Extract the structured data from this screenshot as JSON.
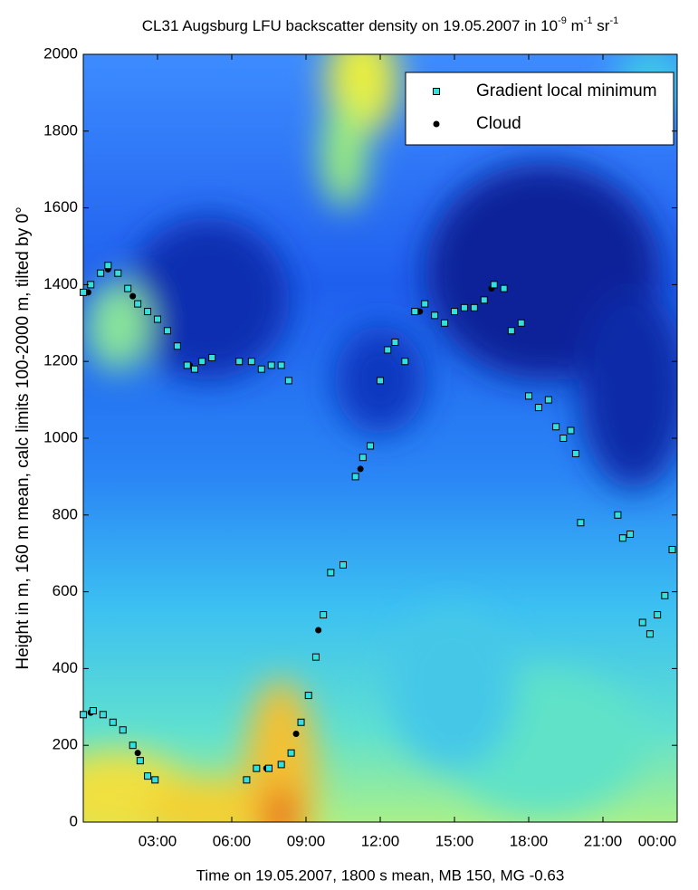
{
  "chart_data": {
    "type": "scatter",
    "title": [
      "CL31 Augsburg LFU backscatter density on 19.05.2007 in 10",
      "-9",
      " m",
      "-1",
      " sr",
      "-1"
    ],
    "x_label": "Time on 19.05.2007, 1800 s mean, MB 150, MG -0.63",
    "y_label": "Height in m, 160 m mean, calc limits 100-2000 m, tilted by 0°",
    "xlim": [
      0,
      24
    ],
    "ylim": [
      0,
      2000
    ],
    "xticks": [
      {
        "value": 3,
        "label": "03:00"
      },
      {
        "value": 6,
        "label": "06:00"
      },
      {
        "value": 9,
        "label": "09:00"
      },
      {
        "value": 12,
        "label": "12:00"
      },
      {
        "value": 15,
        "label": "15:00"
      },
      {
        "value": 18,
        "label": "18:00"
      },
      {
        "value": 21,
        "label": "21:00"
      },
      {
        "value": 24,
        "label": "00:00"
      }
    ],
    "yticks": [
      0,
      200,
      400,
      600,
      800,
      1000,
      1200,
      1400,
      1600,
      1800,
      2000
    ],
    "legend": "upper right",
    "series": [
      {
        "name": "Gradient local minimum",
        "color": "#33e0e0",
        "marker": "square",
        "x": [
          0.0,
          0.3,
          0.7,
          1.0,
          1.4,
          1.8,
          2.2,
          2.6,
          3.0,
          3.4,
          3.8,
          4.2,
          4.5,
          4.8,
          5.2,
          6.3,
          6.8,
          7.2,
          7.6,
          8.0,
          8.3,
          0.0,
          0.4,
          0.8,
          1.2,
          1.6,
          2.0,
          2.3,
          2.6,
          2.9,
          6.6,
          7.0,
          7.5,
          8.0,
          8.4,
          8.8,
          9.1,
          9.4,
          9.7,
          10.0,
          10.5,
          11.0,
          11.3,
          11.6,
          12.0,
          12.3,
          12.6,
          13.0,
          13.4,
          13.8,
          14.2,
          14.6,
          15.0,
          15.4,
          15.8,
          16.2,
          16.6,
          17.0,
          17.3,
          17.7,
          18.0,
          18.4,
          18.8,
          19.1,
          19.4,
          19.7,
          19.9,
          20.1,
          21.6,
          21.8,
          22.1,
          22.6,
          22.9,
          23.2,
          23.5,
          23.8
        ],
        "values": [
          1380,
          1400,
          1430,
          1450,
          1430,
          1390,
          1350,
          1330,
          1310,
          1280,
          1240,
          1190,
          1180,
          1200,
          1210,
          1200,
          1200,
          1180,
          1190,
          1190,
          1150,
          280,
          290,
          280,
          260,
          240,
          200,
          160,
          120,
          110,
          110,
          140,
          140,
          150,
          180,
          260,
          330,
          430,
          540,
          650,
          670,
          900,
          950,
          980,
          1150,
          1230,
          1250,
          1200,
          1330,
          1350,
          1320,
          1300,
          1330,
          1340,
          1340,
          1360,
          1400,
          1390,
          1280,
          1300,
          1110,
          1080,
          1100,
          1030,
          1000,
          1020,
          960,
          780,
          800,
          740,
          750,
          520,
          490,
          540,
          590,
          710
        ]
      },
      {
        "name": "Cloud",
        "color": "#000000",
        "marker": "circle",
        "x": [
          0.2,
          1.0,
          2.0,
          3.0,
          4.3,
          0.3,
          1.2,
          2.2,
          7.4,
          8.6,
          9.5,
          11.2,
          13.6,
          16.5
        ],
        "values": [
          1380,
          1440,
          1370,
          1310,
          1190,
          285,
          260,
          180,
          140,
          230,
          500,
          920,
          1330,
          1390
        ]
      }
    ]
  }
}
